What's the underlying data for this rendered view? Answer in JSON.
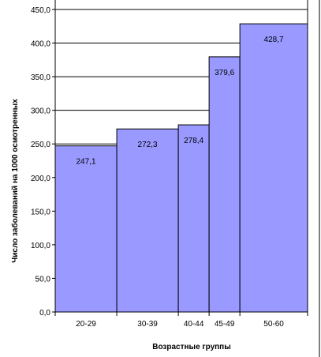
{
  "chart_data": {
    "type": "bar",
    "categories": [
      "20-29",
      "30-39",
      "40-44",
      "45-49",
      "50-60"
    ],
    "values": [
      247.1,
      272.3,
      278.4,
      379.6,
      428.7
    ],
    "value_labels": [
      "247,1",
      "272,3",
      "278,4",
      "379,6",
      "428,7"
    ],
    "bin_edges": [
      20,
      30,
      40,
      45,
      50,
      61
    ],
    "xlabel": "Возрастные группы",
    "ylabel": "Число заболеваний на 1000 осмотренных",
    "ylim": [
      0,
      450
    ],
    "yticks": [
      "0,0",
      "50,0",
      "100,0",
      "150,0",
      "200,0",
      "250,0",
      "300,0",
      "350,0",
      "400,0",
      "450,0"
    ],
    "grid": true,
    "colors": {
      "bar": "#9999ff",
      "outline": "#000000"
    }
  }
}
